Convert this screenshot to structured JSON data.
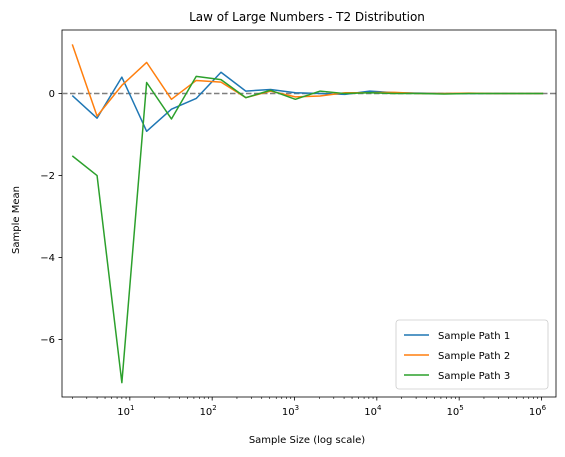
{
  "chart_data": {
    "type": "line",
    "title": "Law of Large Numbers - T2 Distribution",
    "xlabel": "Sample Size (log scale)",
    "ylabel": "Sample Mean",
    "xscale": "log",
    "xlim": [
      1.5,
      1500000
    ],
    "ylim": [
      -7.4,
      1.55
    ],
    "x_tick_base": "10",
    "x_ticks": [
      {
        "value": 10,
        "exp": "1"
      },
      {
        "value": 100,
        "exp": "2"
      },
      {
        "value": 1000,
        "exp": "3"
      },
      {
        "value": 10000,
        "exp": "4"
      },
      {
        "value": 100000,
        "exp": "5"
      },
      {
        "value": 1000000,
        "exp": "6"
      }
    ],
    "y_ticks": [
      {
        "value": 0,
        "label": "0"
      },
      {
        "value": -2,
        "label": "−2"
      },
      {
        "value": -4,
        "label": "−4"
      },
      {
        "value": -6,
        "label": "−6"
      }
    ],
    "x": [
      2,
      4,
      8,
      16,
      32,
      64,
      128,
      256,
      512,
      1024,
      2048,
      4096,
      8192,
      16384,
      32768,
      65536,
      131072,
      262144,
      524288,
      1048576
    ],
    "series": [
      {
        "name": "Sample Path 1",
        "color": "#1f77b4",
        "values": [
          -0.05,
          -0.6,
          0.4,
          -0.92,
          -0.38,
          -0.12,
          0.52,
          0.06,
          0.1,
          0.02,
          0.0,
          -0.02,
          0.06,
          0.02,
          0.01,
          0.0,
          0.0,
          0.0,
          0.0,
          0.0
        ]
      },
      {
        "name": "Sample Path 2",
        "color": "#ff7f0e",
        "values": [
          1.2,
          -0.55,
          0.2,
          0.76,
          -0.14,
          0.32,
          0.28,
          -0.1,
          0.06,
          -0.08,
          -0.06,
          0.02,
          0.02,
          0.03,
          0.0,
          0.0,
          0.01,
          0.0,
          0.0,
          0.0
        ]
      },
      {
        "name": "Sample Path 3",
        "color": "#2ca02c",
        "values": [
          -1.52,
          -2.0,
          -7.05,
          0.27,
          -0.62,
          0.42,
          0.34,
          -0.1,
          0.08,
          -0.14,
          0.06,
          0.0,
          0.02,
          0.0,
          0.0,
          -0.01,
          0.0,
          0.0,
          0.0,
          0.0
        ]
      }
    ],
    "reference_line": {
      "y": 0,
      "style": "dashed",
      "color": "#7f7f7f"
    },
    "grid": false,
    "legend_position": "lower-right"
  }
}
